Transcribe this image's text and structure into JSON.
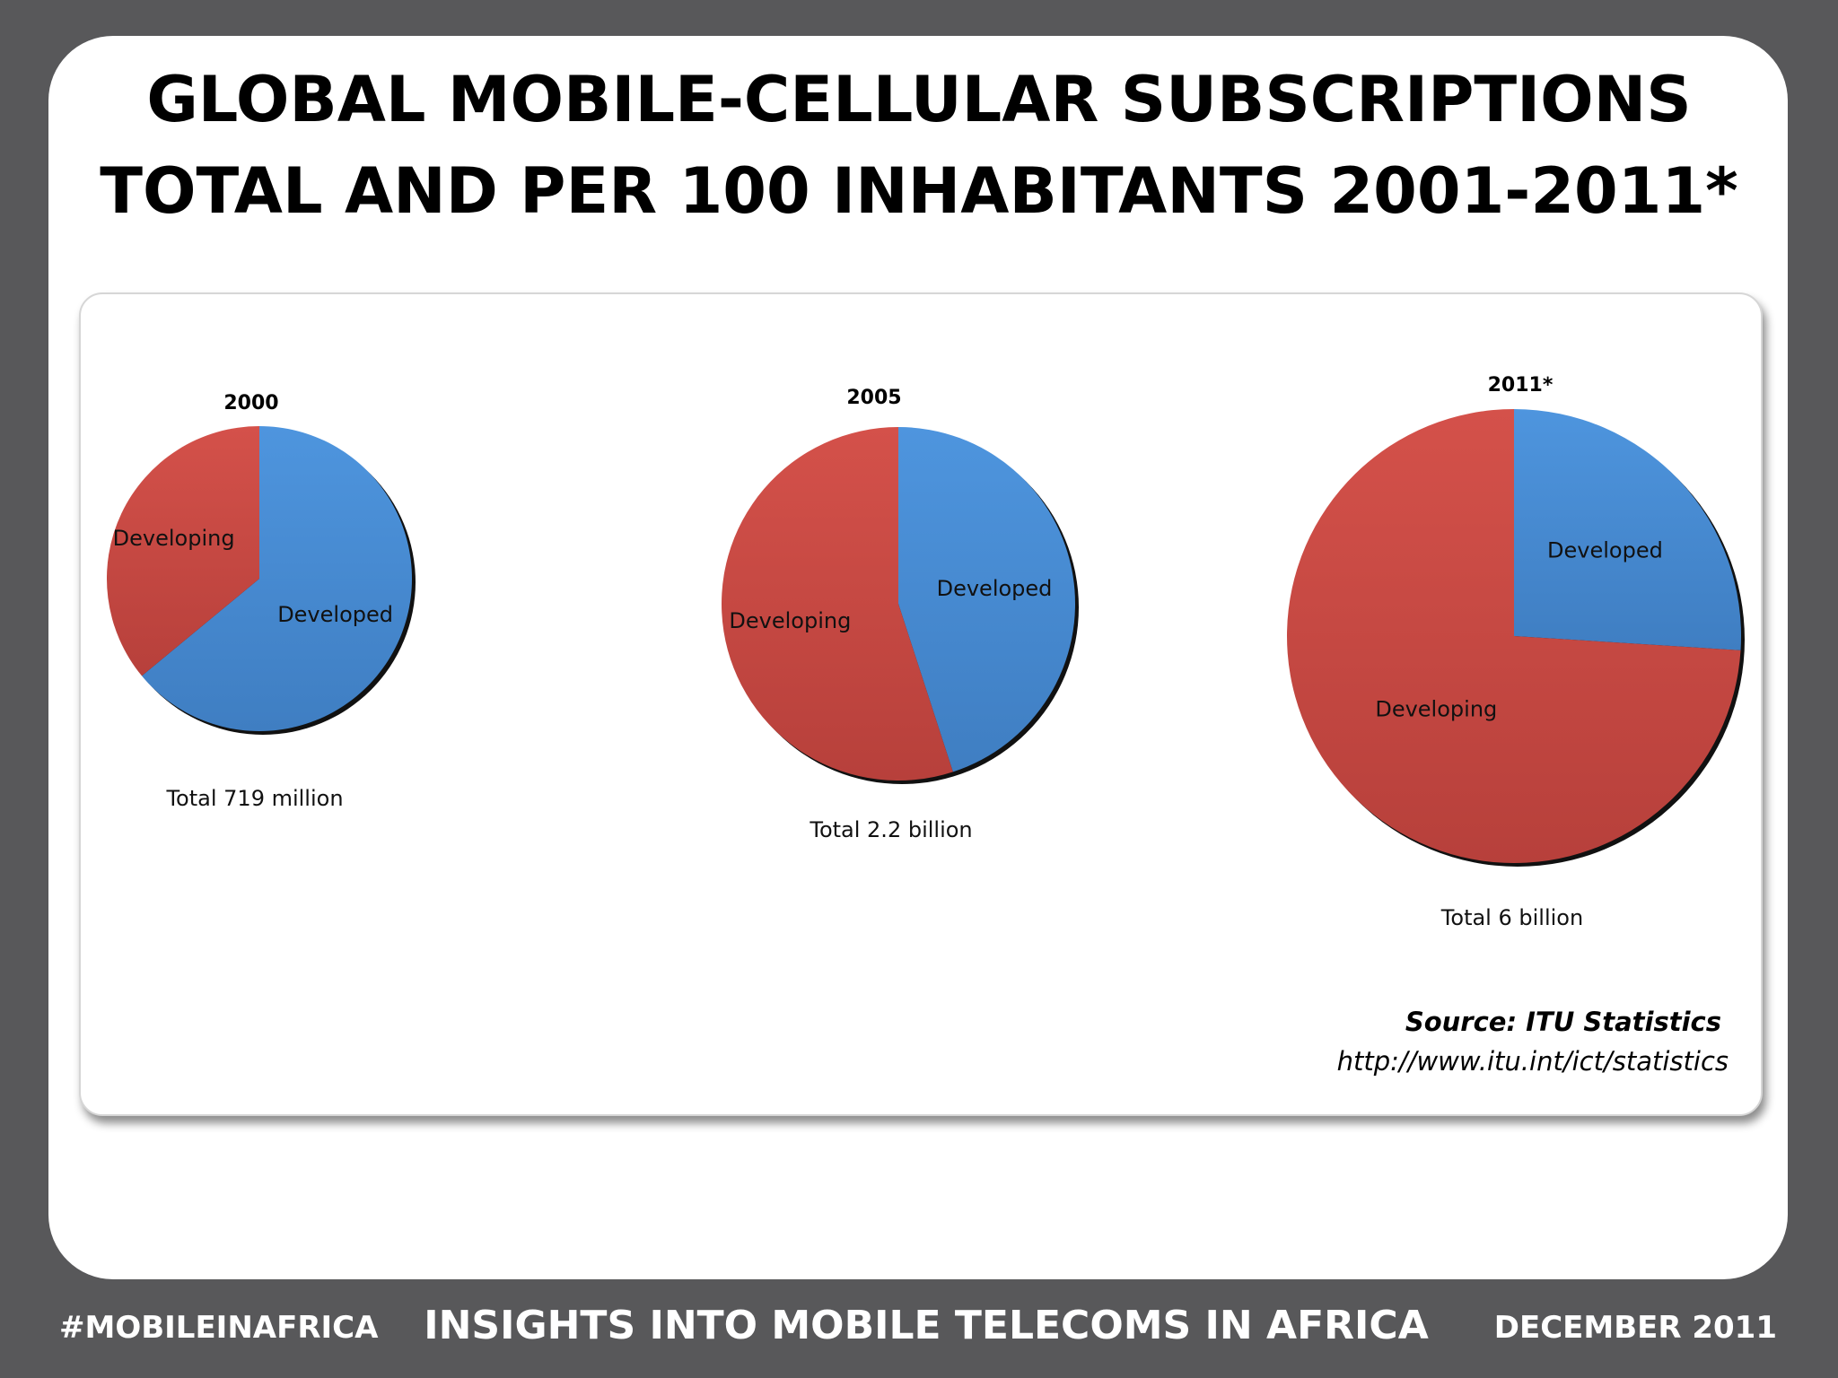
{
  "title_lines": [
    "GLOBAL MOBILE-CELLULAR SUBSCRIPTIONS",
    "TOTAL AND PER 100 INHABITANTS 2001-2011*"
  ],
  "chart_data": [
    {
      "type": "pie",
      "title": "2000",
      "total_label": "Total  719 million",
      "slices": [
        {
          "label": "Developed",
          "value": 64,
          "color": "#4a8fd6"
        },
        {
          "label": "Developing",
          "value": 36,
          "color": "#cd4b43"
        }
      ]
    },
    {
      "type": "pie",
      "title": "2005",
      "total_label": "Total  2.2 billion",
      "slices": [
        {
          "label": "Developed",
          "value": 45,
          "color": "#4a8fd6"
        },
        {
          "label": "Developing",
          "value": 55,
          "color": "#cd4b43"
        }
      ]
    },
    {
      "type": "pie",
      "title": "2011*",
      "total_label": "Total  6 billion",
      "slices": [
        {
          "label": "Developed",
          "value": 26,
          "color": "#4a8fd6"
        },
        {
          "label": "Developing",
          "value": 74,
          "color": "#cd4b43"
        }
      ]
    }
  ],
  "source": {
    "label": "Source: ITU Statistics",
    "url": "http://www.itu.int/ict/statistics"
  },
  "footer": {
    "left": "#MOBILEINAFRICA",
    "center": "INSIGHTS INTO MOBILE TELECOMS IN AFRICA",
    "right": "DECEMBER 2011"
  }
}
